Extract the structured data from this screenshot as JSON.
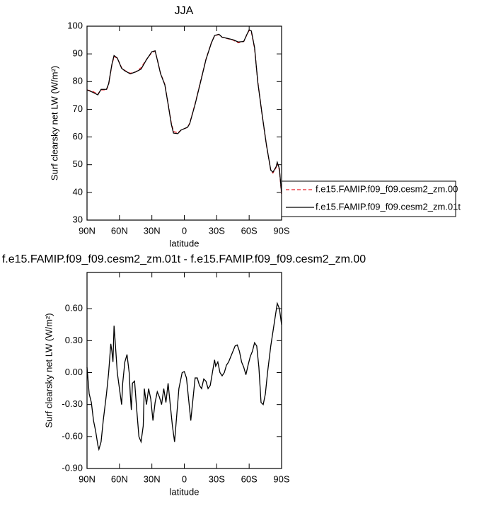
{
  "chart_data": [
    {
      "type": "line",
      "title": "JJA",
      "xlabel": "latitude",
      "ylabel": "Surf clearsky net LW (W/m²)",
      "x": [
        90,
        85,
        80,
        77,
        72,
        70,
        67,
        65,
        62,
        58,
        55,
        50,
        45,
        40,
        35,
        30,
        27,
        25,
        22,
        18,
        15,
        12,
        10,
        6,
        3,
        0,
        -3,
        -5,
        -10,
        -15,
        -20,
        -25,
        -28,
        -32,
        -35,
        -40,
        -45,
        -50,
        -55,
        -58,
        -60,
        -62,
        -65,
        -68,
        -72,
        -76,
        -80,
        -82,
        -85,
        -86,
        -88,
        -90
      ],
      "xlim": [
        90,
        -90
      ],
      "xticks": [
        {
          "value": 90,
          "label": "90N"
        },
        {
          "value": 60,
          "label": "60N"
        },
        {
          "value": 30,
          "label": "30N"
        },
        0,
        {
          "value": -30,
          "label": "30S"
        },
        {
          "value": -60,
          "label": "60S"
        },
        {
          "value": -90,
          "label": "90S"
        }
      ],
      "ylim": [
        30,
        100
      ],
      "yticks": [
        30,
        40,
        50,
        60,
        70,
        80,
        90,
        100
      ],
      "series": [
        {
          "name": "f.e15.FAMIP.f09_f09.cesm2_zm.00",
          "color": "#e8222a",
          "dash": true,
          "values": [
            77,
            76.5,
            75.5,
            77,
            77,
            79,
            86,
            89,
            88.5,
            85,
            84,
            83,
            83.5,
            85,
            88,
            90.5,
            91,
            88,
            83,
            79,
            72,
            65,
            62,
            61.5,
            62.5,
            63,
            63.5,
            65,
            72,
            80,
            88,
            94,
            96.5,
            97,
            96,
            95.5,
            95,
            94,
            94.5,
            97,
            98.5,
            98,
            92,
            80,
            68,
            57,
            48,
            47,
            49,
            50.5,
            48,
            39
          ]
        },
        {
          "name": "f.e15.FAMIP.f09_f09.cesm2_zm.01t",
          "color": "#000000",
          "dash": false,
          "values": [
            77,
            76.2,
            75.2,
            77.2,
            77.2,
            79.2,
            86.2,
            89.4,
            88.5,
            84.8,
            83.9,
            82.8,
            83.5,
            84.5,
            87.9,
            90.8,
            91.1,
            87.9,
            82.9,
            78.8,
            71.9,
            64.6,
            61.4,
            61.2,
            62.5,
            63,
            63.5,
            64.8,
            71.8,
            79.8,
            87.9,
            93.9,
            96.6,
            97.1,
            96,
            95.6,
            95.1,
            94.3,
            94.5,
            97.1,
            98.7,
            98.3,
            92.3,
            79.7,
            68.1,
            57.1,
            48,
            47.3,
            49.3,
            50.9,
            48.5,
            39.5
          ]
        }
      ]
    },
    {
      "type": "line",
      "title": "f.e15.FAMIP.f09_f09.cesm2_zm.01t - f.e15.FAMIP.f09_f09.cesm2_zm.00",
      "xlabel": "latitude",
      "ylabel": "Surf clearsky net LW (W/m²)",
      "x": [
        90,
        88,
        86,
        84,
        82,
        80,
        79,
        77,
        75,
        72,
        70,
        68,
        67,
        66,
        65,
        64,
        62,
        60,
        58,
        57,
        55,
        53,
        51,
        50,
        49,
        48,
        46,
        44,
        42,
        40,
        38,
        37,
        35,
        33,
        31,
        29,
        27,
        25,
        23,
        21,
        19,
        17,
        15,
        13,
        11,
        9,
        7,
        5,
        2,
        0,
        -2,
        -4,
        -6,
        -8,
        -10,
        -12,
        -14,
        -16,
        -18,
        -20,
        -22,
        -24,
        -26,
        -28,
        -29,
        -31,
        -33,
        -35,
        -37,
        -39,
        -41,
        -43,
        -45,
        -47,
        -49,
        -51,
        -53,
        -55,
        -57,
        -59,
        -61,
        -63,
        -65,
        -67,
        -69,
        -71,
        -73,
        -75,
        -77,
        -80,
        -83,
        -86,
        -88,
        -90
      ],
      "xlim": [
        90,
        -90
      ],
      "xticks": [
        {
          "value": 90,
          "label": "90N"
        },
        {
          "value": 60,
          "label": "60N"
        },
        {
          "value": 30,
          "label": "30N"
        },
        0,
        {
          "value": -30,
          "label": "30S"
        },
        {
          "value": -60,
          "label": "60S"
        },
        {
          "value": -90,
          "label": "90S"
        }
      ],
      "ylim": [
        -0.9,
        0.94
      ],
      "yticks": [
        {
          "value": -0.9,
          "label": "-0.90"
        },
        {
          "value": -0.6,
          "label": "-0.60"
        },
        {
          "value": -0.3,
          "label": "-0.30"
        },
        {
          "value": 0,
          "label": "0.00"
        },
        {
          "value": 0.3,
          "label": "0.30"
        },
        {
          "value": 0.6,
          "label": "0.60"
        }
      ],
      "series": [
        {
          "name": null,
          "color": "#000000",
          "dash": false,
          "values": [
            0.05,
            -0.2,
            -0.28,
            -0.45,
            -0.55,
            -0.68,
            -0.72,
            -0.65,
            -0.45,
            -0.2,
            0,
            0.27,
            0.2,
            0.1,
            0.44,
            0.3,
            0,
            -0.15,
            -0.3,
            -0.1,
            0.1,
            0.17,
            0,
            -0.2,
            -0.35,
            -0.1,
            -0.08,
            -0.35,
            -0.6,
            -0.65,
            -0.5,
            -0.15,
            -0.3,
            -0.15,
            -0.25,
            -0.45,
            -0.28,
            -0.18,
            -0.23,
            -0.3,
            -0.15,
            -0.28,
            -0.1,
            -0.3,
            -0.5,
            -0.65,
            -0.4,
            -0.15,
            0,
            0.01,
            -0.05,
            -0.25,
            -0.45,
            -0.25,
            -0.05,
            -0.05,
            -0.12,
            -0.15,
            -0.06,
            -0.08,
            -0.15,
            -0.12,
            0,
            0.12,
            0.06,
            0.1,
            0,
            -0.03,
            0,
            0.07,
            0.1,
            0.15,
            0.2,
            0.25,
            0.26,
            0.2,
            0.1,
            0.05,
            -0.02,
            0.07,
            0.15,
            0.2,
            0.28,
            0.25,
            0.05,
            -0.28,
            -0.3,
            -0.2,
            0,
            0.25,
            0.45,
            0.65,
            0.6,
            0.45
          ]
        }
      ]
    }
  ]
}
